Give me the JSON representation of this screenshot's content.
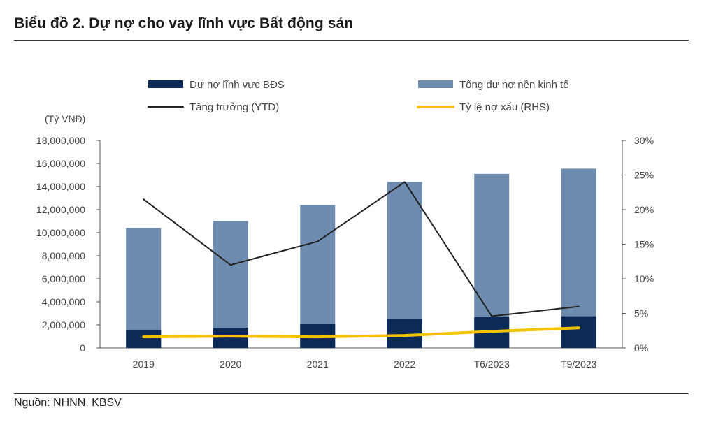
{
  "title": "Biểu đồ 2. Dự nợ cho vay lĩnh vực Bất động sản",
  "source": "Nguồn: NHNN, KBSV",
  "chart_data": {
    "type": "bar",
    "categories": [
      "2019",
      "2020",
      "2021",
      "2022",
      "T6/2023",
      "T9/2023"
    ],
    "y_unit_label": "(Tỷ VNĐ)",
    "ylim": [
      0,
      18000000
    ],
    "y_ticks": [
      0,
      2000000,
      4000000,
      6000000,
      8000000,
      10000000,
      12000000,
      14000000,
      16000000,
      18000000
    ],
    "y_tick_labels": [
      "0",
      "2,000,000",
      "4,000,000",
      "6,000,000",
      "8,000,000",
      "10,000,000",
      "12,000,000",
      "14,000,000",
      "16,000,000",
      "18,000,000"
    ],
    "y2lim": [
      0,
      30
    ],
    "y2_ticks": [
      0,
      5,
      10,
      15,
      20,
      25,
      30
    ],
    "y2_tick_labels": [
      "0%",
      "5%",
      "10%",
      "15%",
      "20%",
      "25%",
      "30%"
    ],
    "legend_position": "top",
    "series": [
      {
        "name": "Dư nợ lĩnh vực BĐS",
        "kind": "bar",
        "axis": "left",
        "color": "#0b2a57",
        "values": [
          1580000,
          1760000,
          2060000,
          2540000,
          2680000,
          2750000
        ]
      },
      {
        "name": "Tổng dư nợ nền kinh tế",
        "kind": "bar",
        "axis": "left",
        "color": "#6d8cb0",
        "values": [
          10400000,
          11000000,
          12400000,
          14400000,
          15100000,
          15550000
        ]
      },
      {
        "name": "Tăng trưởng (YTD)",
        "kind": "line",
        "axis": "right",
        "color": "#222222",
        "values": [
          21.5,
          12.0,
          15.4,
          24.0,
          4.6,
          6.0
        ]
      },
      {
        "name": "Tỷ lệ nợ xấu (RHS)",
        "kind": "line",
        "axis": "right",
        "color": "#f5c200",
        "values": [
          1.6,
          1.7,
          1.6,
          1.8,
          2.4,
          2.9
        ]
      }
    ]
  }
}
